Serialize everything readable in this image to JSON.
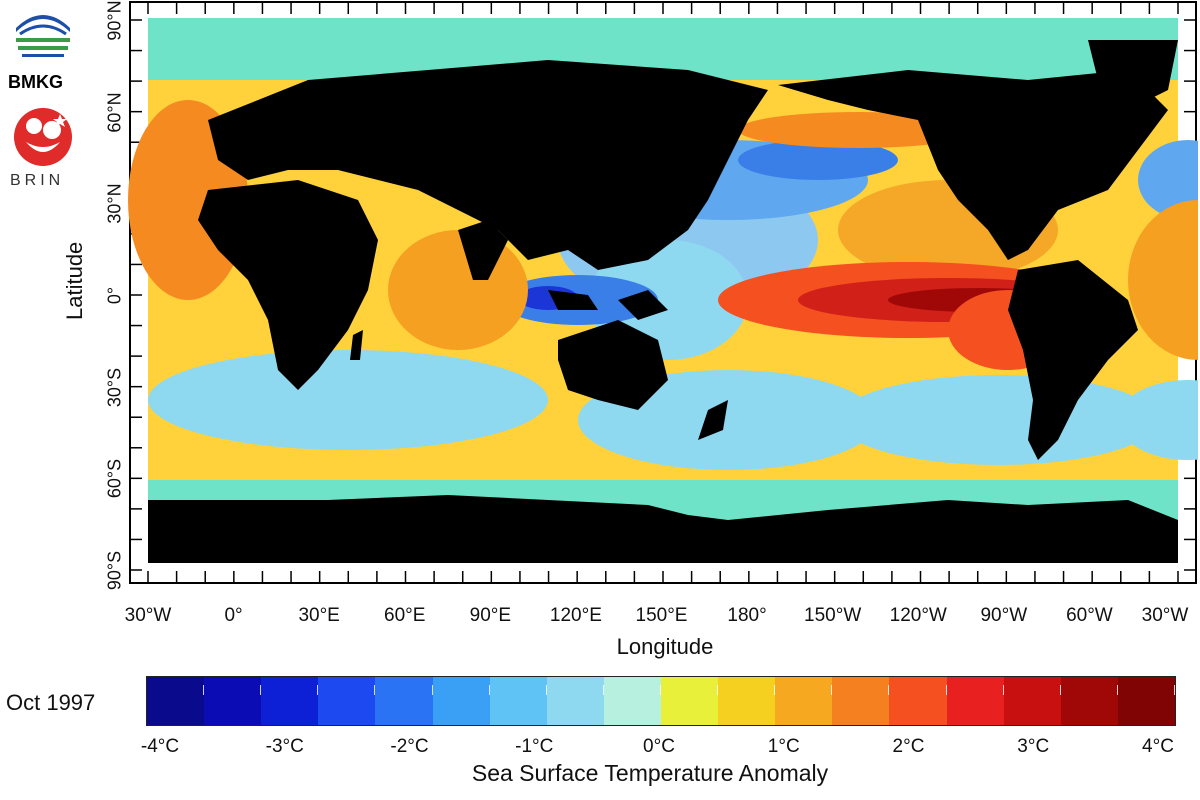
{
  "logos": {
    "bmkg_text": "BMKG",
    "brin_text": "BRIN"
  },
  "map": {
    "y_axis_label": "Latitude",
    "x_axis_label": "Longitude",
    "y_ticks": [
      "90°N",
      "60°N",
      "30°N",
      "0°",
      "30°S",
      "60°S",
      "90°S"
    ],
    "x_ticks": [
      "30°W",
      "0°",
      "30°E",
      "60°E",
      "90°E",
      "120°E",
      "150°E",
      "180°",
      "150°W",
      "120°W",
      "90°W",
      "60°W",
      "30°W"
    ],
    "ocean_mask_color": "#6fe3c8",
    "land_color": "#000000"
  },
  "legend": {
    "date": "Oct 1997",
    "title": "Sea Surface Temperature Anomaly",
    "tick_labels": [
      "-4°C",
      "-3°C",
      "-2°C",
      "-1°C",
      "0°C",
      "1°C",
      "2°C",
      "3°C",
      "4°C"
    ],
    "colors": [
      "#0a0a8c",
      "#0c0cb4",
      "#0d20d6",
      "#1c49f0",
      "#2b73f5",
      "#3aa0f5",
      "#5fc3f5",
      "#8ed8f0",
      "#b8f0e0",
      "#e8f03a",
      "#f5d020",
      "#f5a820",
      "#f58020",
      "#f55020",
      "#e82020",
      "#c81010",
      "#a00808",
      "#800404"
    ]
  }
}
